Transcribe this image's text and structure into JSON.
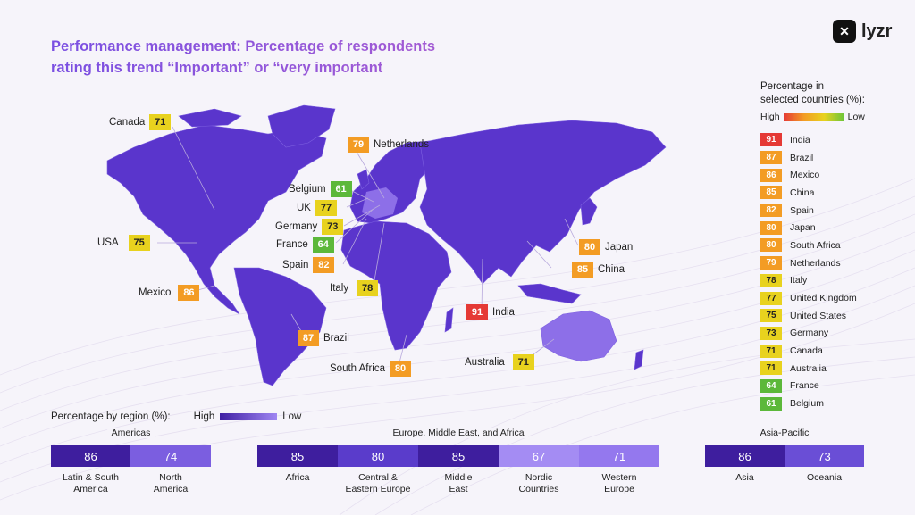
{
  "title": {
    "line1": "Performance management: Percentage of respondents",
    "line2": "rating this trend “Important” or “very important"
  },
  "logo": {
    "text": "lyzr",
    "icon": "lyzr-logo-icon"
  },
  "colors": {
    "red": "#e53935",
    "orange": "#f39c24",
    "yellow": "#e8d21e",
    "green": "#5cb83a",
    "land": "#5a35cc",
    "land_light": "#8d6fe8",
    "title_start": "#7a4fe2",
    "title_end": "#b05fcf"
  },
  "map_callouts": [
    {
      "country": "Canada",
      "value": "71",
      "color": "#e8d21e"
    },
    {
      "country": "Netherlands",
      "value": "79",
      "color": "#f39c24"
    },
    {
      "country": "Belgium",
      "value": "61",
      "color": "#5cb83a"
    },
    {
      "country": "UK",
      "value": "77",
      "color": "#e8d21e"
    },
    {
      "country": "Germany",
      "value": "73",
      "color": "#e8d21e"
    },
    {
      "country": "France",
      "value": "64",
      "color": "#5cb83a"
    },
    {
      "country": "Spain",
      "value": "82",
      "color": "#f39c24"
    },
    {
      "country": "USA",
      "value": "75",
      "color": "#e8d21e"
    },
    {
      "country": "Mexico",
      "value": "86",
      "color": "#f39c24"
    },
    {
      "country": "Italy",
      "value": "78",
      "color": "#e8d21e"
    },
    {
      "country": "Brazil",
      "value": "87",
      "color": "#f39c24"
    },
    {
      "country": "South Africa",
      "value": "80",
      "color": "#f39c24"
    },
    {
      "country": "India",
      "value": "91",
      "color": "#e53935"
    },
    {
      "country": "Japan",
      "value": "80",
      "color": "#f39c24"
    },
    {
      "country": "China",
      "value": "85",
      "color": "#f39c24"
    },
    {
      "country": "Australia",
      "value": "71",
      "color": "#e8d21e"
    }
  ],
  "legend": {
    "title_line1": "Percentage in",
    "title_line2": "selected countries (%):",
    "high": "High",
    "low": "Low",
    "items": [
      {
        "value": "91",
        "label": "India",
        "color": "#e53935"
      },
      {
        "value": "87",
        "label": "Brazil",
        "color": "#f39c24"
      },
      {
        "value": "86",
        "label": "Mexico",
        "color": "#f39c24"
      },
      {
        "value": "85",
        "label": "China",
        "color": "#f39c24"
      },
      {
        "value": "82",
        "label": "Spain",
        "color": "#f39c24"
      },
      {
        "value": "80",
        "label": "Japan",
        "color": "#f39c24"
      },
      {
        "value": "80",
        "label": "South Africa",
        "color": "#f39c24"
      },
      {
        "value": "79",
        "label": "Netherlands",
        "color": "#f39c24"
      },
      {
        "value": "78",
        "label": "Italy",
        "color": "#e8d21e"
      },
      {
        "value": "77",
        "label": "United Kingdom",
        "color": "#e8d21e"
      },
      {
        "value": "75",
        "label": "United States",
        "color": "#e8d21e"
      },
      {
        "value": "73",
        "label": "Germany",
        "color": "#e8d21e"
      },
      {
        "value": "71",
        "label": "Canada",
        "color": "#e8d21e"
      },
      {
        "value": "71",
        "label": "Australia",
        "color": "#e8d21e"
      },
      {
        "value": "64",
        "label": "France",
        "color": "#5cb83a"
      },
      {
        "value": "61",
        "label": "Belgium",
        "color": "#5cb83a"
      }
    ]
  },
  "regions": {
    "title": "Percentage by region (%):",
    "high": "High",
    "low": "Low",
    "groups": [
      {
        "name": "Americas",
        "items": [
          {
            "value": "86",
            "label1": "Latin & South",
            "label2": "America",
            "color": "#3e1e9e"
          },
          {
            "value": "74",
            "label1": "North",
            "label2": "America",
            "color": "#7b5ee0"
          }
        ]
      },
      {
        "name": "Europe, Middle East, and Africa",
        "items": [
          {
            "value": "85",
            "label1": "Africa",
            "label2": "",
            "color": "#3e1e9e"
          },
          {
            "value": "80",
            "label1": "Central &",
            "label2": "Eastern Europe",
            "color": "#5a3ccb"
          },
          {
            "value": "85",
            "label1": "Middle",
            "label2": "East",
            "color": "#3e1e9e"
          },
          {
            "value": "67",
            "label1": "Nordic",
            "label2": "Countries",
            "color": "#a48cf3"
          },
          {
            "value": "71",
            "label1": "Western",
            "label2": "Europe",
            "color": "#9478ee"
          }
        ]
      },
      {
        "name": "Asia-Pacific",
        "items": [
          {
            "value": "86",
            "label1": "Asia",
            "label2": "",
            "color": "#3e1e9e"
          },
          {
            "value": "73",
            "label1": "Oceania",
            "label2": "",
            "color": "#6a4ed6"
          }
        ]
      }
    ]
  }
}
